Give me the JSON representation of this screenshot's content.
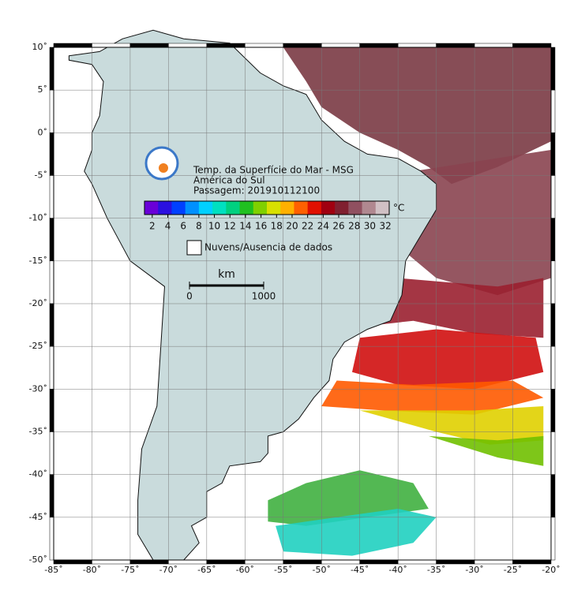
{
  "map": {
    "title_lines": [
      "Temp. da Superfície do Mar - MSG",
      "América do Sul",
      "Passagem: 201910112100"
    ],
    "lonlim": [
      -85,
      -20
    ],
    "latlim": [
      -50,
      10
    ],
    "lonticks": [
      {
        "value": -85,
        "label": "-85˚"
      },
      {
        "value": -80,
        "label": "-80˚"
      },
      {
        "value": -75,
        "label": "-75˚"
      },
      {
        "value": -70,
        "label": "-70˚"
      },
      {
        "value": -65,
        "label": "-65˚"
      },
      {
        "value": -60,
        "label": "-60˚"
      },
      {
        "value": -55,
        "label": "-55˚"
      },
      {
        "value": -50,
        "label": "-50˚"
      },
      {
        "value": -45,
        "label": "-45˚"
      },
      {
        "value": -40,
        "label": "-40˚"
      },
      {
        "value": -35,
        "label": "-35˚"
      },
      {
        "value": -30,
        "label": "-30˚"
      },
      {
        "value": -25,
        "label": "-25˚"
      },
      {
        "value": -20,
        "label": "-20˚"
      }
    ],
    "latticks": [
      {
        "value": 10,
        "label": "10˚"
      },
      {
        "value": 5,
        "label": "5˚"
      },
      {
        "value": 0,
        "label": "0˚"
      },
      {
        "value": -5,
        "label": "-5˚"
      },
      {
        "value": -10,
        "label": "-10˚"
      },
      {
        "value": -15,
        "label": "-15˚"
      },
      {
        "value": -20,
        "label": "-20˚"
      },
      {
        "value": -25,
        "label": "-25˚"
      },
      {
        "value": -30,
        "label": "-30˚"
      },
      {
        "value": -35,
        "label": "-35˚"
      },
      {
        "value": -40,
        "label": "-40˚"
      },
      {
        "value": -45,
        "label": "-45˚"
      },
      {
        "value": -50,
        "label": "-50˚"
      }
    ],
    "grid": true,
    "colorbar": {
      "unit": "°C",
      "clim": [
        1,
        32.5
      ],
      "ticks": [
        2,
        4,
        6,
        8,
        10,
        12,
        14,
        16,
        18,
        20,
        22,
        24,
        26,
        28,
        30,
        32
      ],
      "colors": [
        "#6a00d8",
        "#2a10e0",
        "#0040ff",
        "#0090ff",
        "#00d0ff",
        "#00e0c0",
        "#00d080",
        "#20c020",
        "#80d000",
        "#d8e000",
        "#ffb000",
        "#ff6000",
        "#e01000",
        "#a00010",
        "#802030",
        "#905060",
        "#b08890",
        "#d0c0c4"
      ]
    },
    "legend": "Nuvens/Ausencia de dados",
    "scalebar": {
      "unit": "km",
      "labels": [
        "0",
        "1000"
      ]
    }
  }
}
